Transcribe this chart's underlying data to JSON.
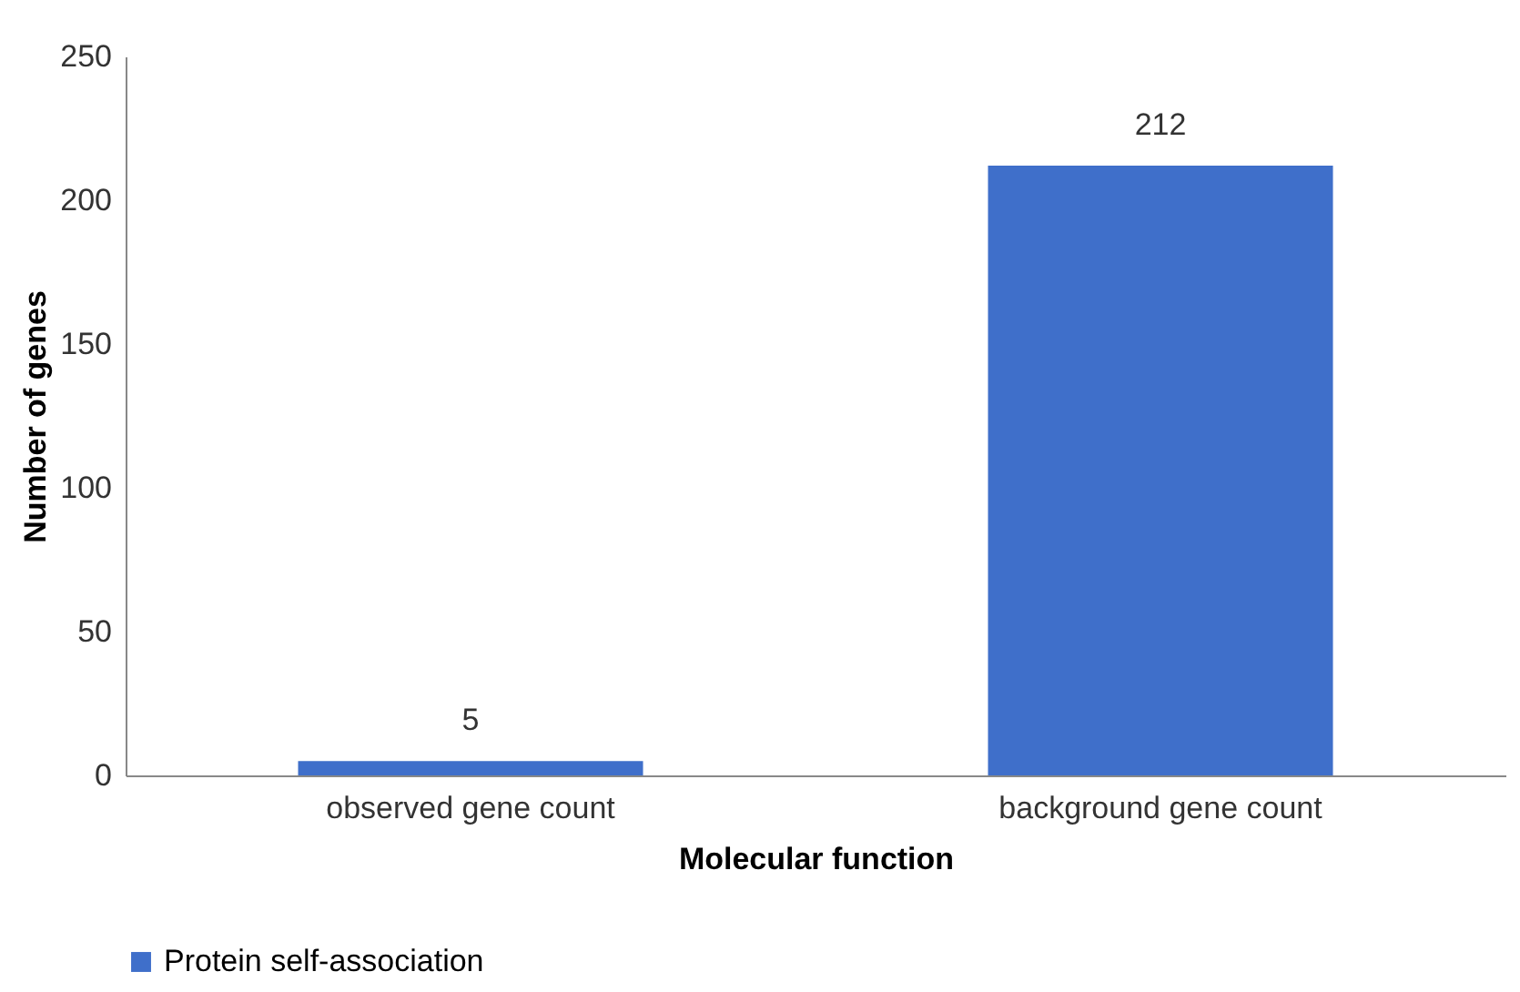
{
  "chart_data": {
    "type": "bar",
    "xlabel": "Molecular function",
    "ylabel": "Number of genes",
    "categories": [
      "observed gene count",
      "background gene count"
    ],
    "series": [
      {
        "name": "Protein self-association",
        "color": "#3f6fca",
        "values": [
          5,
          212
        ]
      }
    ],
    "ylim": [
      0,
      250
    ],
    "yticks": [
      0,
      50,
      100,
      150,
      200,
      250
    ],
    "grid": false,
    "legend": "bottom",
    "data_labels": true
  }
}
